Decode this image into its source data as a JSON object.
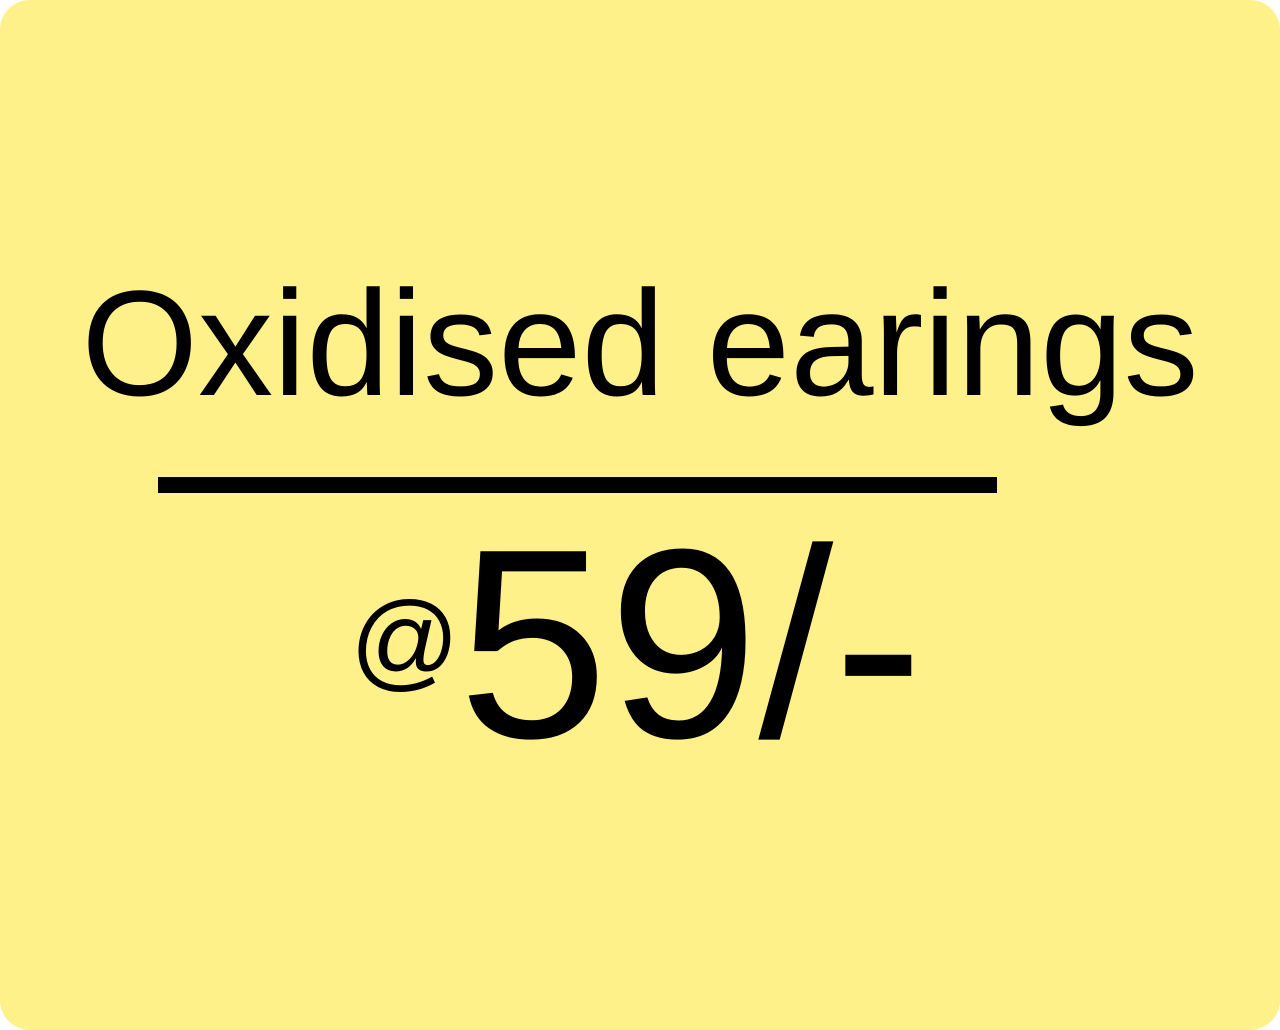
{
  "card": {
    "background_color": "#fff189",
    "title": "Oxidised earings",
    "price_prefix": "@",
    "price": "59/-"
  }
}
